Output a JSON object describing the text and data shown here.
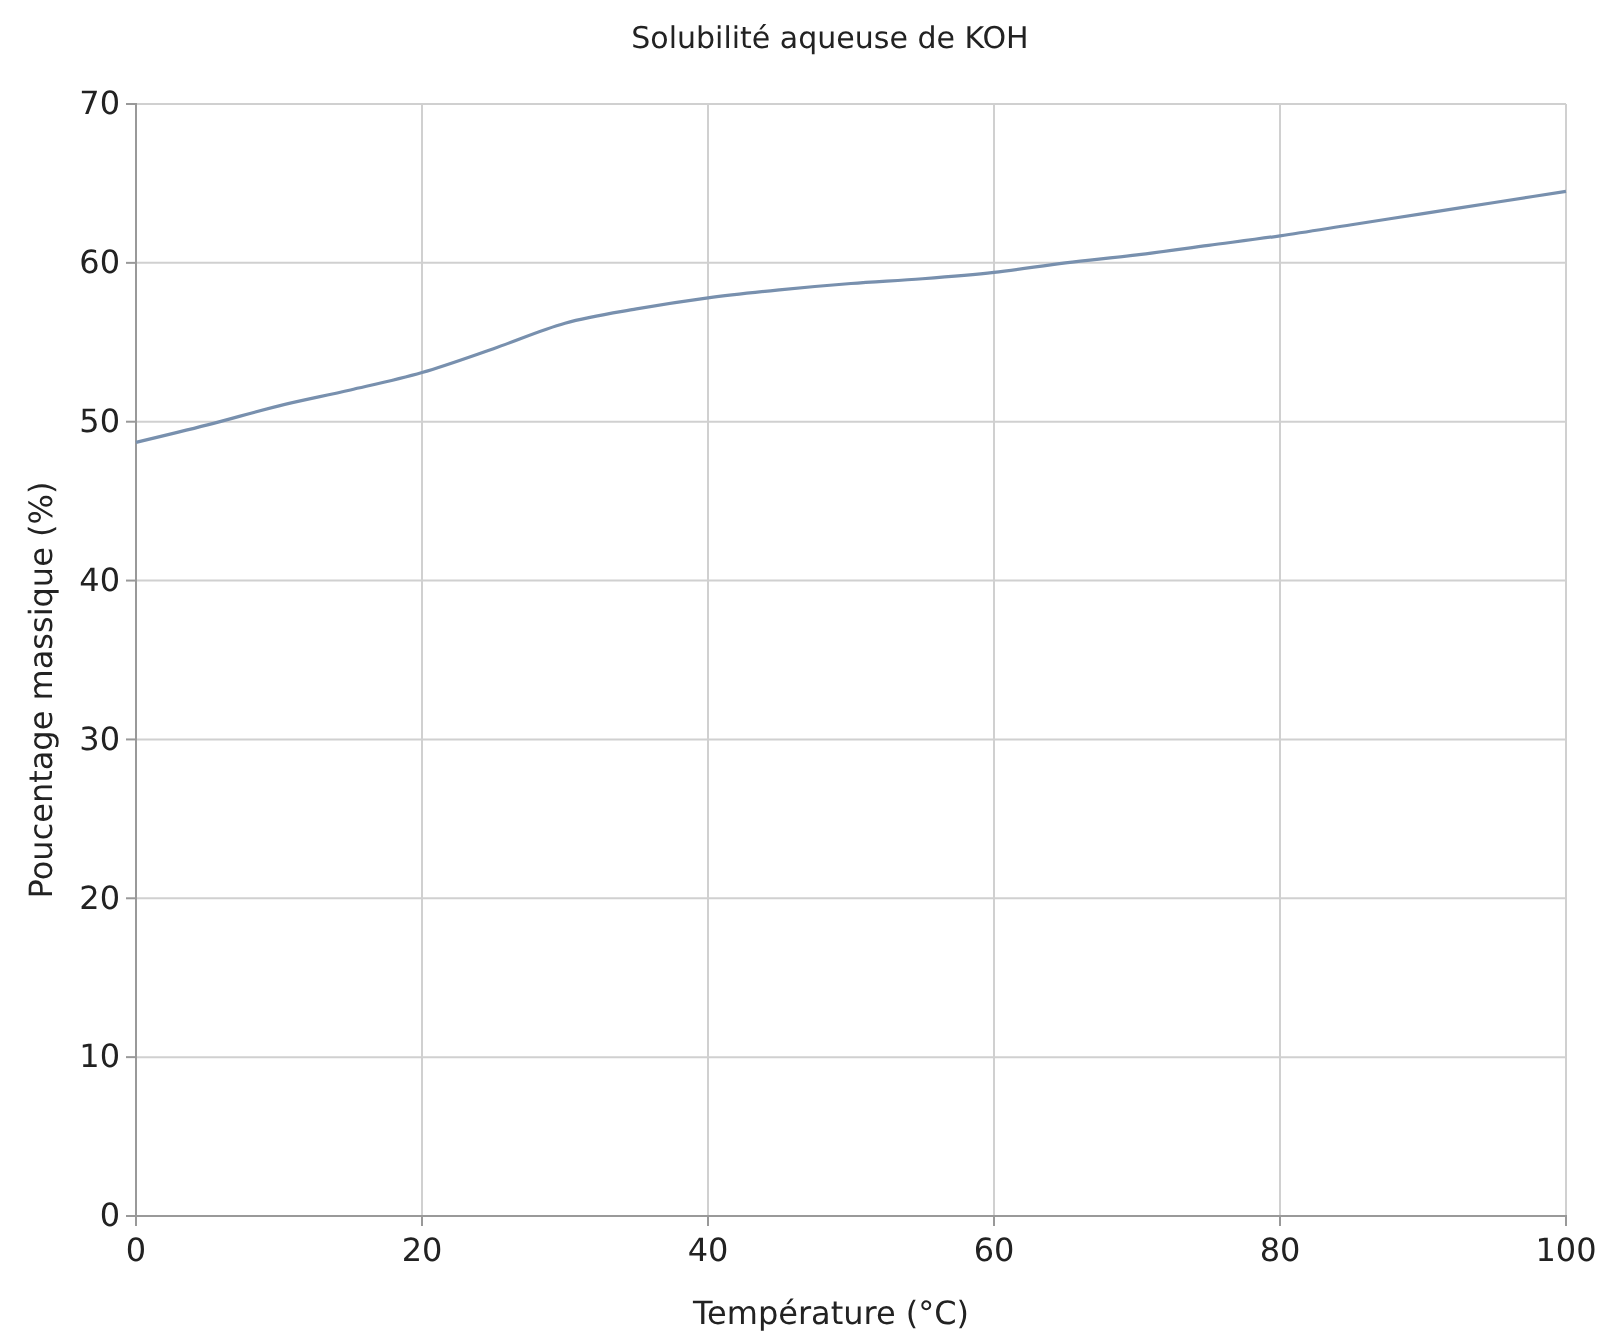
{
  "chart_data": {
    "type": "line",
    "title": "Solubilité aqueuse de KOH",
    "xlabel": "Température (°C)",
    "ylabel": "Poucentage massique (%)",
    "x": [
      0,
      5,
      10,
      15,
      20,
      25,
      30,
      35,
      40,
      45,
      50,
      55,
      60,
      65,
      70,
      75,
      80,
      85,
      90,
      95,
      100
    ],
    "series": [
      {
        "color": "#7890ae",
        "values": [
          48.7,
          49.8,
          51.0,
          52.0,
          53.1,
          54.6,
          56.2,
          57.1,
          57.8,
          58.3,
          58.7,
          59.0,
          59.4,
          60.0,
          60.5,
          61.1,
          61.7,
          62.4,
          63.1,
          63.8,
          64.5
        ]
      }
    ],
    "xlim": [
      0,
      100
    ],
    "xticks": [
      0,
      20,
      40,
      60,
      80,
      100
    ],
    "ylim": [
      0,
      70
    ],
    "yticks": [
      0,
      10,
      20,
      30,
      40,
      50,
      60,
      70
    ],
    "grid": true,
    "marker": "none",
    "line_style": "solid"
  }
}
